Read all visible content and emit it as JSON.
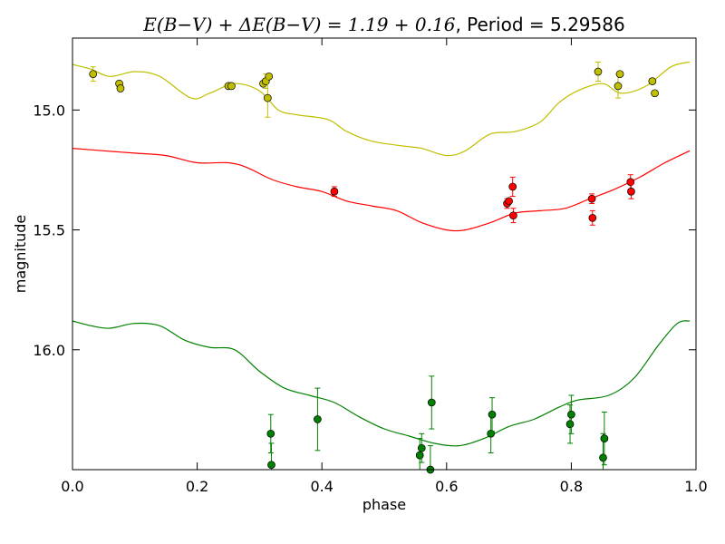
{
  "chart_data": {
    "type": "scatter",
    "title": "E(B−V) + ΔE(B−V) = 1.19 + 0.16, Period = 5.29586",
    "title_math": "E(B−V) + ΔE(B−V) = 1.19 + 0.16",
    "title_text": ", Period = 5.29586",
    "xlabel": "phase",
    "ylabel": "magnitude",
    "xlim": [
      0.0,
      1.0
    ],
    "ylim": [
      16.5,
      14.7
    ],
    "y_inverted": true,
    "grid": false,
    "x_ticks": [
      {
        "value": 0.0,
        "label": "0.0"
      },
      {
        "value": 0.2,
        "label": "0.2"
      },
      {
        "value": 0.4,
        "label": "0.4"
      },
      {
        "value": 0.6,
        "label": "0.6"
      },
      {
        "value": 0.8,
        "label": "0.8"
      },
      {
        "value": 1.0,
        "label": "1.0"
      }
    ],
    "y_ticks": [
      {
        "value": 15.0,
        "label": "15.0"
      },
      {
        "value": 15.5,
        "label": "15.5"
      },
      {
        "value": 16.0,
        "label": "16.0"
      }
    ],
    "series": [
      {
        "color": "#bfbf00",
        "curve": [
          [
            0.0,
            14.81
          ],
          [
            0.03,
            14.83
          ],
          [
            0.06,
            14.86
          ],
          [
            0.1,
            14.84
          ],
          [
            0.14,
            14.86
          ],
          [
            0.19,
            14.95
          ],
          [
            0.22,
            14.93
          ],
          [
            0.26,
            14.89
          ],
          [
            0.3,
            14.92
          ],
          [
            0.33,
            15.0
          ],
          [
            0.36,
            15.02
          ],
          [
            0.41,
            15.04
          ],
          [
            0.44,
            15.09
          ],
          [
            0.48,
            15.13
          ],
          [
            0.53,
            15.15
          ],
          [
            0.56,
            15.16
          ],
          [
            0.6,
            15.19
          ],
          [
            0.63,
            15.17
          ],
          [
            0.67,
            15.1
          ],
          [
            0.71,
            15.09
          ],
          [
            0.75,
            15.05
          ],
          [
            0.78,
            14.97
          ],
          [
            0.81,
            14.92
          ],
          [
            0.85,
            14.89
          ],
          [
            0.88,
            14.93
          ],
          [
            0.92,
            14.9
          ],
          [
            0.96,
            14.82
          ],
          [
            0.99,
            14.8
          ]
        ],
        "points": [
          {
            "x": 0.033,
            "y": 14.85,
            "err": 0.03
          },
          {
            "x": 0.075,
            "y": 14.89,
            "err": 0.01
          },
          {
            "x": 0.077,
            "y": 14.91,
            "err": 0.01
          },
          {
            "x": 0.25,
            "y": 14.9,
            "err": 0.01
          },
          {
            "x": 0.255,
            "y": 14.9,
            "err": 0.01
          },
          {
            "x": 0.306,
            "y": 14.89,
            "err": 0.01
          },
          {
            "x": 0.31,
            "y": 14.88,
            "err": 0.03
          },
          {
            "x": 0.315,
            "y": 14.86,
            "err": 0.01
          },
          {
            "x": 0.313,
            "y": 14.95,
            "err": 0.08
          },
          {
            "x": 0.843,
            "y": 14.84,
            "err": 0.04
          },
          {
            "x": 0.875,
            "y": 14.9,
            "err": 0.05
          },
          {
            "x": 0.878,
            "y": 14.85,
            "err": 0.01
          },
          {
            "x": 0.93,
            "y": 14.88,
            "err": 0.01
          },
          {
            "x": 0.934,
            "y": 14.93,
            "err": 0.01
          }
        ]
      },
      {
        "color": "#ff0000",
        "curve": [
          [
            0.0,
            15.16
          ],
          [
            0.05,
            15.17
          ],
          [
            0.1,
            15.18
          ],
          [
            0.15,
            15.19
          ],
          [
            0.2,
            15.22
          ],
          [
            0.25,
            15.22
          ],
          [
            0.28,
            15.24
          ],
          [
            0.32,
            15.29
          ],
          [
            0.36,
            15.32
          ],
          [
            0.4,
            15.34
          ],
          [
            0.44,
            15.38
          ],
          [
            0.48,
            15.4
          ],
          [
            0.52,
            15.42
          ],
          [
            0.56,
            15.47
          ],
          [
            0.6,
            15.5
          ],
          [
            0.63,
            15.5
          ],
          [
            0.67,
            15.47
          ],
          [
            0.71,
            15.43
          ],
          [
            0.75,
            15.42
          ],
          [
            0.79,
            15.41
          ],
          [
            0.83,
            15.37
          ],
          [
            0.87,
            15.33
          ],
          [
            0.91,
            15.28
          ],
          [
            0.95,
            15.22
          ],
          [
            0.99,
            15.17
          ]
        ],
        "points": [
          {
            "x": 0.42,
            "y": 15.34,
            "err": 0.02
          },
          {
            "x": 0.697,
            "y": 15.39,
            "err": 0.02
          },
          {
            "x": 0.7,
            "y": 15.38,
            "err": 0.01
          },
          {
            "x": 0.706,
            "y": 15.32,
            "err": 0.04
          },
          {
            "x": 0.707,
            "y": 15.44,
            "err": 0.03
          },
          {
            "x": 0.833,
            "y": 15.37,
            "err": 0.02
          },
          {
            "x": 0.834,
            "y": 15.45,
            "err": 0.03
          },
          {
            "x": 0.895,
            "y": 15.3,
            "err": 0.03
          },
          {
            "x": 0.896,
            "y": 15.34,
            "err": 0.03
          }
        ]
      },
      {
        "color": "#008000",
        "curve": [
          [
            0.0,
            15.88
          ],
          [
            0.03,
            15.9
          ],
          [
            0.06,
            15.91
          ],
          [
            0.1,
            15.89
          ],
          [
            0.14,
            15.9
          ],
          [
            0.18,
            15.96
          ],
          [
            0.22,
            15.99
          ],
          [
            0.26,
            16.0
          ],
          [
            0.3,
            16.09
          ],
          [
            0.34,
            16.16
          ],
          [
            0.38,
            16.19
          ],
          [
            0.42,
            16.22
          ],
          [
            0.46,
            16.28
          ],
          [
            0.5,
            16.33
          ],
          [
            0.54,
            16.36
          ],
          [
            0.58,
            16.39
          ],
          [
            0.62,
            16.4
          ],
          [
            0.66,
            16.37
          ],
          [
            0.7,
            16.32
          ],
          [
            0.74,
            16.29
          ],
          [
            0.78,
            16.24
          ],
          [
            0.81,
            16.21
          ],
          [
            0.86,
            16.19
          ],
          [
            0.9,
            16.12
          ],
          [
            0.94,
            15.98
          ],
          [
            0.97,
            15.89
          ],
          [
            0.99,
            15.88
          ]
        ],
        "points": [
          {
            "x": 0.318,
            "y": 16.35,
            "err": 0.08
          },
          {
            "x": 0.319,
            "y": 16.48,
            "err": 0.09
          },
          {
            "x": 0.393,
            "y": 16.29,
            "err": 0.13
          },
          {
            "x": 0.557,
            "y": 16.44,
            "err": 0.07
          },
          {
            "x": 0.56,
            "y": 16.41,
            "err": 0.06
          },
          {
            "x": 0.574,
            "y": 16.5,
            "err": 0.1
          },
          {
            "x": 0.576,
            "y": 16.22,
            "err": 0.11
          },
          {
            "x": 0.671,
            "y": 16.35,
            "err": 0.08
          },
          {
            "x": 0.673,
            "y": 16.27,
            "err": 0.07
          },
          {
            "x": 0.798,
            "y": 16.31,
            "err": 0.08
          },
          {
            "x": 0.8,
            "y": 16.27,
            "err": 0.08
          },
          {
            "x": 0.851,
            "y": 16.45,
            "err": 0.1
          },
          {
            "x": 0.853,
            "y": 16.37,
            "err": 0.11
          }
        ]
      }
    ]
  }
}
